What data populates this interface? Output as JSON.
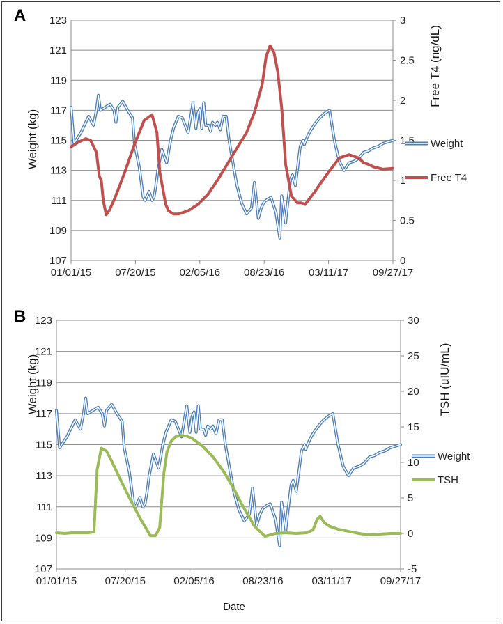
{
  "chart_data": [
    {
      "panel": "A",
      "type": "line",
      "xlabel": "",
      "ylabel_left": "Weight (kg)",
      "ylabel_right": "Free T4 (ng/dL)",
      "x_ticks": [
        "01/01/15",
        "07/20/15",
        "02/05/16",
        "08/23/16",
        "03/11/17",
        "09/27/17"
      ],
      "x_range_months": [
        0,
        33
      ],
      "y_left": {
        "min": 107,
        "max": 123,
        "ticks": [
          "107",
          "109",
          "111",
          "113",
          "115",
          "117",
          "119",
          "121",
          "123"
        ]
      },
      "y_right": {
        "min": 0,
        "max": 3,
        "ticks": [
          "0",
          "0.5",
          "1",
          "1.5",
          "2",
          "2.5",
          "3"
        ]
      },
      "legend_position": "right",
      "series": [
        {
          "name": "Weight",
          "axis": "left",
          "color": "#4a7ebb",
          "style": "double",
          "x": [
            0,
            0.3,
            1.0,
            1.8,
            2.3,
            2.6,
            2.8,
            3.0,
            3.5,
            4.0,
            4.4,
            4.6,
            4.8,
            5.3,
            5.8,
            6.3,
            6.5,
            7.0,
            7.4,
            7.6,
            8.0,
            8.3,
            8.5,
            8.7,
            8.9,
            9.3,
            9.8,
            10.2,
            10.5,
            11.0,
            11.4,
            12.0,
            12.5,
            12.8,
            13.0,
            13.2,
            13.4,
            13.6,
            13.8,
            14.1,
            14.3,
            14.5,
            14.8,
            15.0,
            15.3,
            15.6,
            15.9,
            16.2,
            16.6,
            17.0,
            17.5,
            18.0,
            18.5,
            18.8,
            19.2,
            19.5,
            19.8,
            20.2,
            20.5,
            21.0,
            21.4,
            21.6,
            21.9,
            22.0,
            22.1,
            22.3,
            22.5,
            22.7,
            23.0,
            23.5,
            23.8,
            23.9,
            24.2,
            24.5,
            25.0,
            25.5,
            26.0,
            26.5,
            27.0,
            27.5,
            28.0,
            28.5,
            29.0,
            29.5,
            30.0,
            30.5,
            31.0,
            31.5,
            32.0,
            32.5,
            33.0
          ],
          "y": [
            117.2,
            114.8,
            115.5,
            116.6,
            116.0,
            117.0,
            118.0,
            117.0,
            117.2,
            117.4,
            117.0,
            116.2,
            117.2,
            117.6,
            117.0,
            116.5,
            114.8,
            113.2,
            111.2,
            111.0,
            111.6,
            111.0,
            111.2,
            112.0,
            113.0,
            114.4,
            113.5,
            115.0,
            115.8,
            116.6,
            116.5,
            115.5,
            117.5,
            115.8,
            116.8,
            117.1,
            115.8,
            117.5,
            116.0,
            116.0,
            115.6,
            116.2,
            116.0,
            116.2,
            115.7,
            116.6,
            116.6,
            115.0,
            113.5,
            112.0,
            110.8,
            110.1,
            110.5,
            112.2,
            109.8,
            110.5,
            110.9,
            111.1,
            111.2,
            110.2,
            108.5,
            111.3,
            110.0,
            109.5,
            110.2,
            111.3,
            112.4,
            112.7,
            112.0,
            114.6,
            115.0,
            114.7,
            115.2,
            115.6,
            116.1,
            116.5,
            116.8,
            117.0,
            115.0,
            113.6,
            113.0,
            113.5,
            113.6,
            113.8,
            114.2,
            114.3,
            114.5,
            114.6,
            114.8,
            114.9,
            115.0
          ],
          "display_end_month": 33
        },
        {
          "name": "Free T4",
          "axis": "right",
          "color": "#c0504d",
          "style": "solid",
          "x": [
            0,
            0.8,
            1.5,
            2.0,
            2.6,
            2.9,
            3.1,
            3.3,
            3.6,
            3.9,
            4.5,
            5.5,
            6.5,
            7.5,
            8.3,
            8.8,
            9.1,
            9.4,
            9.7,
            10.0,
            10.5,
            11.0,
            12.0,
            13.0,
            14.0,
            15.0,
            16.0,
            17.0,
            18.0,
            18.8,
            19.6,
            20.0,
            20.4,
            20.8,
            21.2,
            21.6,
            22.0,
            22.6,
            23.2,
            23.6,
            24.0,
            24.5,
            25.0,
            25.5,
            26.5,
            27.5,
            28.5,
            29.5,
            30.0,
            30.5,
            31.0,
            32.0,
            33.0
          ],
          "y": [
            1.42,
            1.48,
            1.52,
            1.5,
            1.35,
            1.05,
            1.0,
            0.75,
            0.57,
            0.62,
            0.78,
            1.1,
            1.45,
            1.75,
            1.82,
            1.6,
            1.1,
            0.9,
            0.7,
            0.62,
            0.58,
            0.58,
            0.62,
            0.7,
            0.82,
            1.0,
            1.2,
            1.4,
            1.6,
            1.85,
            2.2,
            2.55,
            2.68,
            2.6,
            2.35,
            1.9,
            1.2,
            0.8,
            0.72,
            0.72,
            0.7,
            0.78,
            0.86,
            0.95,
            1.12,
            1.28,
            1.32,
            1.28,
            1.22,
            1.2,
            1.17,
            1.14,
            1.15
          ]
        }
      ]
    },
    {
      "panel": "B",
      "type": "line",
      "xlabel": "Date",
      "ylabel_left": "Weight (kg)",
      "ylabel_right": "TSH (uIU/mL)",
      "x_ticks": [
        "01/01/15",
        "07/20/15",
        "02/05/16",
        "08/23/16",
        "03/11/17",
        "09/27/17"
      ],
      "x_range_months": [
        0,
        33
      ],
      "y_left": {
        "min": 107,
        "max": 123,
        "ticks": [
          "107",
          "109",
          "111",
          "113",
          "115",
          "117",
          "119",
          "121",
          "123"
        ]
      },
      "y_right": {
        "min": -5,
        "max": 30,
        "ticks": [
          "-5",
          "0",
          "5",
          "10",
          "15",
          "20",
          "25",
          "30"
        ]
      },
      "legend_position": "right",
      "series": [
        {
          "name": "Weight",
          "axis": "left",
          "color": "#4a7ebb",
          "style": "double",
          "reuse_weight_from_panel_a": true
        },
        {
          "name": "TSH",
          "axis": "right",
          "color": "#9bbb59",
          "style": "solid",
          "x": [
            0,
            0.8,
            1.5,
            2.2,
            3.0,
            3.6,
            3.9,
            4.3,
            4.8,
            5.3,
            6.0,
            7.0,
            8.0,
            9.0,
            9.5,
            9.9,
            10.3,
            10.6,
            11.0,
            11.4,
            11.9,
            12.5,
            13.0,
            14.0,
            15.0,
            16.0,
            17.0,
            18.0,
            19.0,
            20.0,
            20.5,
            21.0,
            22.0,
            23.0,
            24.0,
            24.6,
            25.0,
            25.3,
            25.7,
            26.2,
            27.0,
            28.0,
            29.0,
            30.0,
            31.0,
            32.0,
            33.0
          ],
          "y": [
            0.1,
            0.0,
            0.1,
            0.1,
            0.1,
            0.2,
            9.0,
            12.0,
            11.6,
            10.2,
            8.0,
            5.0,
            2.2,
            -0.3,
            -0.3,
            0.8,
            8.5,
            11.5,
            13.0,
            13.6,
            13.8,
            13.7,
            13.4,
            12.3,
            10.8,
            8.8,
            6.3,
            3.5,
            1.0,
            -0.4,
            -0.2,
            0.0,
            0.1,
            0.0,
            0.1,
            0.5,
            2.0,
            2.4,
            1.5,
            1.0,
            0.6,
            0.3,
            0.0,
            -0.2,
            -0.1,
            0.0,
            0.0
          ]
        }
      ]
    }
  ],
  "legend": {
    "a": [
      {
        "label": "Weight"
      },
      {
        "label": "Free T4"
      }
    ],
    "b": [
      {
        "label": "Weight"
      },
      {
        "label": "TSH"
      }
    ]
  },
  "panel_labels": {
    "a": "A",
    "b": "B"
  }
}
